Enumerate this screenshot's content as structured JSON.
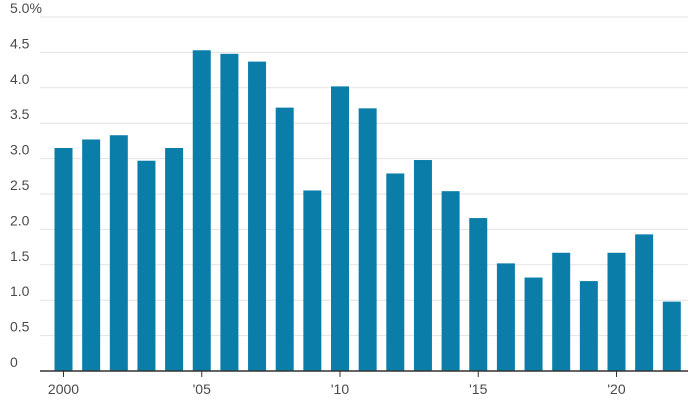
{
  "chart_data": {
    "type": "bar",
    "categories": [
      "2000",
      "2001",
      "2002",
      "2003",
      "2004",
      "2005",
      "2006",
      "2007",
      "2008",
      "2009",
      "2010",
      "2011",
      "2012",
      "2013",
      "2014",
      "2015",
      "2016",
      "2017",
      "2018",
      "2019",
      "2020",
      "2021",
      "2022"
    ],
    "values": [
      3.15,
      3.27,
      3.33,
      2.97,
      3.15,
      4.53,
      4.48,
      4.37,
      3.72,
      2.55,
      4.02,
      3.71,
      2.79,
      2.98,
      2.54,
      2.16,
      1.52,
      1.32,
      1.67,
      1.27,
      1.67,
      1.93,
      0.98
    ],
    "ylim": [
      0,
      5
    ],
    "y_ticks": [
      {
        "value": 0,
        "label": "0"
      },
      {
        "value": 0.5,
        "label": "0.5"
      },
      {
        "value": 1,
        "label": "1.0"
      },
      {
        "value": 1.5,
        "label": "1.5"
      },
      {
        "value": 2,
        "label": "2.0"
      },
      {
        "value": 2.5,
        "label": "2.5"
      },
      {
        "value": 3,
        "label": "3.0"
      },
      {
        "value": 3.5,
        "label": "3.5"
      },
      {
        "value": 4,
        "label": "4.0"
      },
      {
        "value": 4.5,
        "label": "4.5"
      },
      {
        "value": 5,
        "label": "5.0%"
      }
    ],
    "x_ticks": [
      {
        "category": "2000",
        "label": "2000"
      },
      {
        "category": "2005",
        "label": "'05"
      },
      {
        "category": "2010",
        "label": "'10"
      },
      {
        "category": "2015",
        "label": "'15"
      },
      {
        "category": "2020",
        "label": "'20"
      }
    ],
    "title": "",
    "xlabel": "",
    "ylabel": "",
    "grid": true,
    "bar_color": "#0a7ea8"
  }
}
